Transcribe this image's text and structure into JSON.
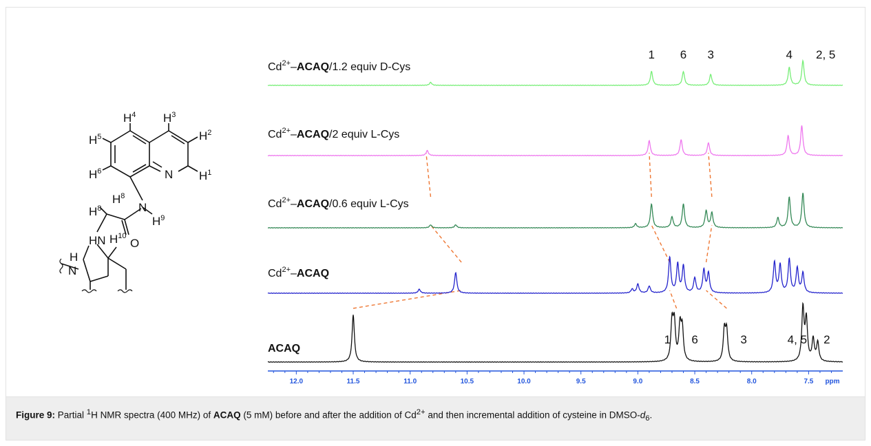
{
  "figure": {
    "caption": {
      "label": "Figure 9:",
      "p1": " Partial ",
      "sup1": "1",
      "p2": "H NMR spectra (400 MHz) of ",
      "compound": "ACAQ",
      "p3": " (5 mM) before and after the addition of Cd",
      "sup2": "2+",
      "p4": " and then incremental addition of cysteine in DMSO-",
      "solvent_italic": "d",
      "solvent_sub": "6",
      "p5": "."
    }
  },
  "structure": {
    "labels": {
      "h4": "H",
      "h4n": "4",
      "h3": "H",
      "h3n": "3",
      "h2": "H",
      "h2n": "2",
      "h5": "H",
      "h5n": "5",
      "h6": "H",
      "h6n": "6",
      "h1": "H",
      "h1n": "1",
      "n_ring": "N",
      "h8a": "H",
      "h8an": "8",
      "h8b": "H",
      "h8bn": "8",
      "n_amide": "N",
      "h9": "H",
      "h9n": "9",
      "hn": "HN",
      "h10": "H",
      "h10n": "10",
      "o": "O",
      "h_top": "H",
      "n_left": "N"
    }
  },
  "chart_data": {
    "type": "line",
    "xlabel": "ppm",
    "x_axis_reversed": true,
    "xlim": [
      12.25,
      7.2
    ],
    "ticks": [
      "12.0",
      "11.5",
      "11.0",
      "10.5",
      "10.0",
      "9.5",
      "9.0",
      "8.5",
      "8.0",
      "7.5"
    ],
    "tick_values": [
      12.0,
      11.5,
      11.0,
      10.5,
      10.0,
      9.5,
      9.0,
      8.5,
      8.0,
      7.5
    ],
    "axis_color": "#2255dd",
    "series": [
      {
        "name": "Cd²⁺–ACAQ/1.2 equiv D-Cys",
        "label_prefix": "Cd",
        "label_sup": "2+",
        "label_dash": "–",
        "label_bold": "ACAQ",
        "label_suffix": "/1.2 equiv D-Cys",
        "color": "#77ee77",
        "peaks": [
          [
            10.82,
            0.06
          ],
          [
            8.88,
            0.28
          ],
          [
            8.6,
            0.28
          ],
          [
            8.36,
            0.22
          ],
          [
            7.67,
            0.36
          ],
          [
            7.55,
            0.5
          ]
        ],
        "assignments": [
          [
            "1",
            8.88
          ],
          [
            "6",
            8.6
          ],
          [
            "3",
            8.36
          ],
          [
            "4",
            7.67
          ],
          [
            "2, 5",
            7.35
          ]
        ]
      },
      {
        "name": "Cd²⁺–ACAQ/2 equiv L-Cys",
        "label_prefix": "Cd",
        "label_sup": "2+",
        "label_dash": "–",
        "label_bold": "ACAQ",
        "label_suffix": "/2 equiv L-Cys",
        "color": "#ee77ee",
        "peaks": [
          [
            10.85,
            0.1
          ],
          [
            8.9,
            0.3
          ],
          [
            8.62,
            0.32
          ],
          [
            8.38,
            0.26
          ],
          [
            7.68,
            0.4
          ],
          [
            7.56,
            0.6
          ]
        ]
      },
      {
        "name": "Cd²⁺–ACAQ/0.6 equiv L-Cys",
        "label_prefix": "Cd",
        "label_sup": "2+",
        "label_dash": "–",
        "label_bold": "ACAQ",
        "label_suffix": "/0.6 equiv L-Cys",
        "color": "#338855",
        "peaks": [
          [
            10.82,
            0.06
          ],
          [
            10.6,
            0.06
          ],
          [
            9.02,
            0.08
          ],
          [
            8.88,
            0.48
          ],
          [
            8.7,
            0.22
          ],
          [
            8.6,
            0.48
          ],
          [
            8.4,
            0.34
          ],
          [
            8.35,
            0.3
          ],
          [
            7.77,
            0.2
          ],
          [
            7.67,
            0.62
          ],
          [
            7.55,
            0.7
          ]
        ]
      },
      {
        "name": "Cd²⁺–ACAQ",
        "label_prefix": "Cd",
        "label_sup": "2+",
        "label_dash": "–",
        "label_bold": "ACAQ",
        "label_suffix": "",
        "color": "#2222cc",
        "peaks": [
          [
            10.92,
            0.08
          ],
          [
            10.6,
            0.42
          ],
          [
            9.05,
            0.08
          ],
          [
            9.0,
            0.18
          ],
          [
            8.9,
            0.14
          ],
          [
            8.72,
            0.72
          ],
          [
            8.65,
            0.58
          ],
          [
            8.6,
            0.54
          ],
          [
            8.5,
            0.3
          ],
          [
            8.42,
            0.46
          ],
          [
            8.38,
            0.4
          ],
          [
            7.8,
            0.62
          ],
          [
            7.75,
            0.56
          ],
          [
            7.67,
            0.68
          ],
          [
            7.6,
            0.5
          ],
          [
            7.55,
            0.4
          ]
        ]
      },
      {
        "name": "ACAQ",
        "label_prefix": "",
        "label_sup": "",
        "label_dash": "",
        "label_bold": "ACAQ",
        "label_suffix": "",
        "color": "#111111",
        "peaks": [
          [
            11.5,
            0.9
          ],
          [
            8.7,
            0.72
          ],
          [
            8.68,
            0.7
          ],
          [
            8.63,
            0.64
          ],
          [
            8.61,
            0.6
          ],
          [
            8.24,
            0.58
          ],
          [
            8.22,
            0.56
          ],
          [
            7.55,
            1.0
          ],
          [
            7.52,
            0.78
          ],
          [
            7.46,
            0.42
          ],
          [
            7.42,
            0.36
          ]
        ],
        "assignments": [
          [
            "1",
            8.74
          ],
          [
            "6",
            8.5
          ],
          [
            "3",
            8.07
          ],
          [
            "4, 5",
            7.6
          ],
          [
            "2",
            7.34
          ]
        ]
      }
    ],
    "correlation_lines": [
      {
        "from_series": 4,
        "to_series": 3,
        "from_x": 11.5,
        "to_x": 10.55
      },
      {
        "from_series": 3,
        "to_series": 2,
        "from_x": 10.55,
        "to_x": 10.82
      },
      {
        "from_series": 2,
        "to_series": 1,
        "from_x": 10.82,
        "to_x": 10.86
      },
      {
        "from_series": 4,
        "to_series": 3,
        "from_x": 8.66,
        "to_x": 8.72
      },
      {
        "from_series": 3,
        "to_series": 2,
        "from_x": 8.72,
        "to_x": 8.88
      },
      {
        "from_series": 2,
        "to_series": 1,
        "from_x": 8.88,
        "to_x": 8.9
      },
      {
        "from_series": 4,
        "to_series": 3,
        "from_x": 8.22,
        "to_x": 8.4
      },
      {
        "from_series": 3,
        "to_series": 2,
        "from_x": 8.4,
        "to_x": 8.35
      },
      {
        "from_series": 2,
        "to_series": 1,
        "from_x": 8.35,
        "to_x": 8.38
      }
    ],
    "correlation_color": "#ee7733"
  }
}
